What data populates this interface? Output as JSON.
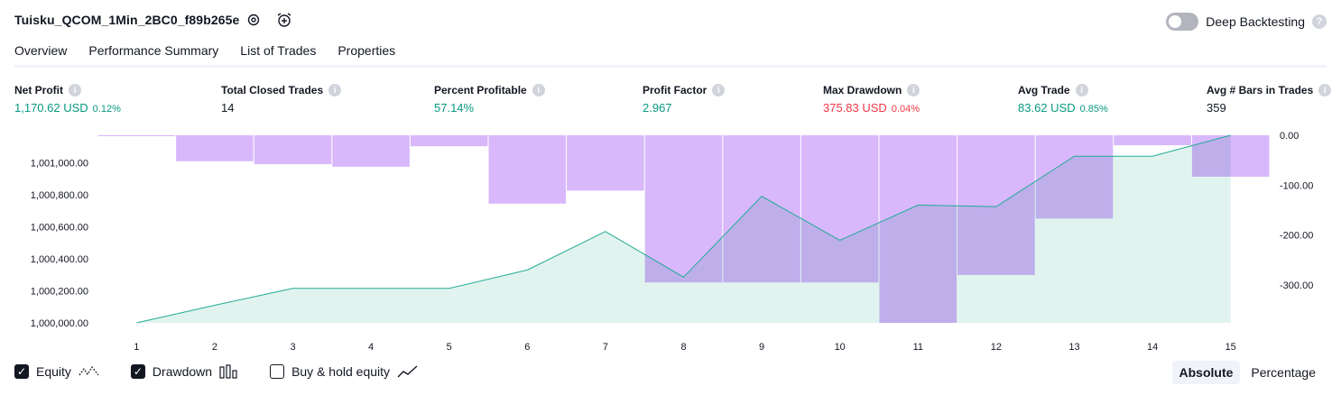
{
  "header": {
    "title": "Tuisku_QCOM_1Min_2BC0_f89b265e",
    "settings_icon": "gear-icon",
    "alert_icon": "alarm-clock-plus-icon",
    "deep_backtesting_label": "Deep Backtesting",
    "deep_backtesting_enabled": false,
    "help": "?"
  },
  "tabs": [
    {
      "label": "Overview",
      "active": true
    },
    {
      "label": "Performance Summary",
      "active": false
    },
    {
      "label": "List of Trades",
      "active": false
    },
    {
      "label": "Properties",
      "active": false
    }
  ],
  "stats": [
    {
      "label": "Net Profit",
      "value": "1,170.62 USD",
      "pct": "0.12%",
      "color": "#089981"
    },
    {
      "label": "Total Closed Trades",
      "value": "14",
      "pct": "",
      "color": "#131722"
    },
    {
      "label": "Percent Profitable",
      "value": "57.14%",
      "pct": "",
      "color": "#089981"
    },
    {
      "label": "Profit Factor",
      "value": "2.967",
      "pct": "",
      "color": "#089981"
    },
    {
      "label": "Max Drawdown",
      "value": "375.83 USD",
      "pct": "0.04%",
      "color": "#f23645"
    },
    {
      "label": "Avg Trade",
      "value": "83.62 USD",
      "pct": "0.85%",
      "color": "#089981"
    },
    {
      "label": "Avg # Bars in Trades",
      "value": "359",
      "pct": "",
      "color": "#131722"
    }
  ],
  "info_glyph": "i",
  "chart_data": {
    "type": "line",
    "x": [
      1,
      2,
      3,
      4,
      5,
      6,
      7,
      8,
      9,
      10,
      11,
      12,
      13,
      14,
      15
    ],
    "series": [
      {
        "name": "Equity",
        "axis": "left",
        "type": "area",
        "values": [
          1000000,
          1000110,
          1000215,
          1000215,
          1000215,
          1000330,
          1000570,
          1000285,
          1000790,
          1000515,
          1000735,
          1000725,
          1001040,
          1001040,
          1001170.62
        ]
      },
      {
        "name": "Drawdown",
        "axis": "right",
        "type": "bar",
        "values": [
          0,
          -52,
          -58,
          -63,
          -22,
          -137,
          -111,
          -295,
          -295,
          -295,
          -376,
          -280,
          -167,
          -20,
          -83
        ]
      }
    ],
    "left_ticks": [
      "1,000,000.00",
      "1,000,200.00",
      "1,000,400.00",
      "1,000,600.00",
      "1,000,800.00",
      "1,001,000.00"
    ],
    "left_tick_values": [
      1000000,
      1000200,
      1000400,
      1000600,
      1000800,
      1001000
    ],
    "right_ticks": [
      "0.00",
      "-100.00",
      "-200.00",
      "-300.00"
    ],
    "right_tick_values": [
      0,
      -100,
      -200,
      -300
    ],
    "x_ticks": [
      "1",
      "2",
      "3",
      "4",
      "5",
      "6",
      "7",
      "8",
      "9",
      "10",
      "11",
      "12",
      "13",
      "14",
      "15"
    ],
    "ylim_left": [
      1000000,
      1001170.62
    ],
    "ylim_right": [
      -376,
      0
    ],
    "colors": {
      "equity_line": "#22ab94",
      "equity_fill": "#d7efe9",
      "drawdown_fill": "#d8b8fb",
      "overlap_fill": "#b3b0e6"
    }
  },
  "legend": [
    {
      "label": "Equity",
      "checked": true,
      "icon": "equity-line-icon"
    },
    {
      "label": "Drawdown",
      "checked": true,
      "icon": "drawdown-bars-icon"
    },
    {
      "label": "Buy & hold equity",
      "checked": false,
      "icon": "buy-hold-line-icon"
    }
  ],
  "check_glyph": "✓",
  "mode": {
    "absolute": "Absolute",
    "percentage": "Percentage",
    "selected": "Absolute"
  }
}
